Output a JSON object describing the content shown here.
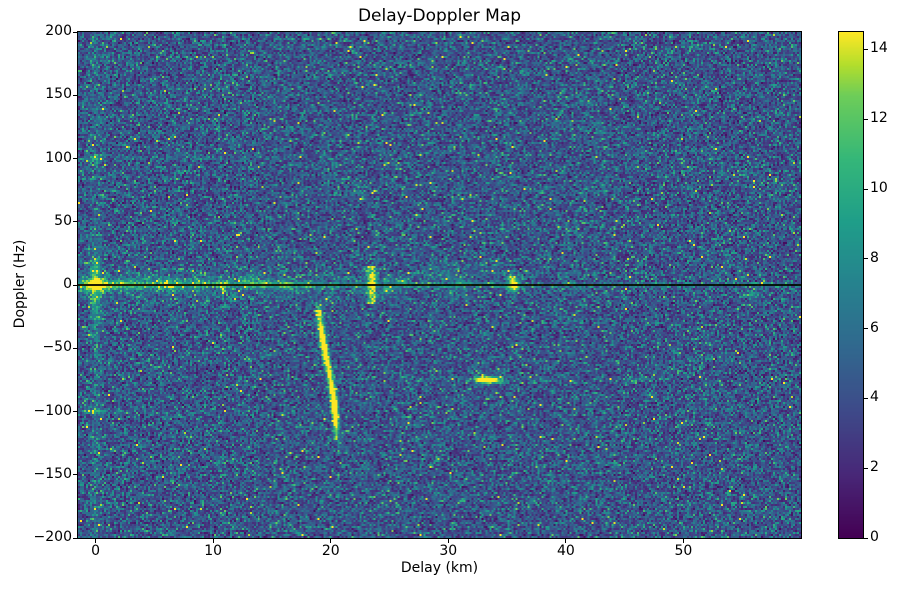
{
  "figure": {
    "title": "Delay-Doppler Map",
    "xlabel": "Delay (km)",
    "ylabel": "Doppler (Hz)"
  },
  "chart_data": {
    "type": "heatmap",
    "title": "Delay-Doppler Map",
    "xlabel": "Delay (km)",
    "ylabel": "Doppler (Hz)",
    "xlim": [
      -1.5,
      60
    ],
    "ylim": [
      -200,
      200
    ],
    "xticks": [
      0,
      10,
      20,
      30,
      40,
      50
    ],
    "yticks": [
      -200,
      -150,
      -100,
      -50,
      0,
      50,
      100,
      150,
      200
    ],
    "colormap": "viridis",
    "grid": false,
    "colorbar": {
      "min": 0,
      "max": 14.5,
      "ticks": [
        0,
        2,
        4,
        6,
        8,
        10,
        12,
        14
      ],
      "position": "right"
    },
    "background_noise": {
      "mean": 4.6,
      "shape": 4,
      "seed": 42
    },
    "annotations": [
      {
        "type": "axhline",
        "y": 0,
        "color": "#000000"
      }
    ],
    "features": [
      {
        "type": "hline",
        "name": "zero-doppler-ridge",
        "y": 0,
        "x0": -1.5,
        "x1": 60,
        "amp": 7,
        "amp_end": 6,
        "sigma": 0.9
      },
      {
        "type": "hline",
        "name": "zero-doppler-clutter-band",
        "y": 0,
        "x0": -1.5,
        "x1": 27,
        "amp": 2.8,
        "amp_end": 0.6,
        "sigma": 4.5
      },
      {
        "type": "hline",
        "name": "zero-doppler-wide-fuzz",
        "y": 0,
        "x0": -1.5,
        "x1": 27,
        "amp": 1.1,
        "amp_end": 0.3,
        "sigma": 12
      },
      {
        "type": "vline",
        "name": "zero-delay-column",
        "x": 0,
        "y0": -200,
        "y1": 200,
        "amp": 1.2,
        "sigma": 0.35
      },
      {
        "type": "blob",
        "name": "direct-path",
        "x": 0,
        "y": 0,
        "amp": 12,
        "sx": 0.5,
        "sy": 3
      },
      {
        "type": "blob",
        "x": 0,
        "y": 10,
        "amp": 4,
        "sx": 0.35,
        "sy": 7
      },
      {
        "type": "blob",
        "x": 0,
        "y": -12,
        "amp": 4,
        "sx": 0.35,
        "sy": 8
      },
      {
        "type": "blob",
        "x": 0,
        "y": 28,
        "amp": 1.8,
        "sx": 0.3,
        "sy": 9
      },
      {
        "type": "blob",
        "x": 0,
        "y": -30,
        "amp": 1.8,
        "sx": 0.3,
        "sy": 9
      },
      {
        "type": "blob",
        "name": "spur-plus100",
        "x": 0,
        "y": 100,
        "amp": 4.5,
        "sx": 0.4,
        "sy": 1.8
      },
      {
        "type": "blob",
        "name": "spur-minus100",
        "x": 0,
        "y": -100,
        "amp": 4.5,
        "sx": 0.4,
        "sy": 1.8
      },
      {
        "type": "hline",
        "name": "faint-line-plus100",
        "y": 100,
        "x0": -1,
        "x1": 26,
        "amp": 1.5,
        "amp_end": 0.4,
        "sigma": 1.2
      },
      {
        "type": "hline",
        "name": "faint-line-minus100",
        "y": -100,
        "x0": -1,
        "x1": 13,
        "amp": 1.4,
        "amp_end": 0.4,
        "sigma": 1.2
      },
      {
        "type": "hline",
        "name": "faint-line-minus75",
        "y": -75,
        "x0": 25,
        "x1": 47,
        "amp": 1.3,
        "amp_end": 1.0,
        "sigma": 1.3
      },
      {
        "type": "blob",
        "x": 1.3,
        "y": 0,
        "amp": 6,
        "sx": 0.3,
        "sy": 2.2
      },
      {
        "type": "blob",
        "x": 2.3,
        "y": 1,
        "amp": 4,
        "sx": 0.3,
        "sy": 2
      },
      {
        "type": "blob",
        "x": 3.2,
        "y": 0,
        "amp": 4,
        "sx": 0.35,
        "sy": 2
      },
      {
        "type": "blob",
        "x": 4.5,
        "y": 1,
        "amp": 3,
        "sx": 0.4,
        "sy": 2.5
      },
      {
        "type": "blob",
        "x": 6,
        "y": 1,
        "amp": 6,
        "sx": 0.4,
        "sy": 3
      },
      {
        "type": "blob",
        "x": 7.2,
        "y": 0,
        "amp": 4,
        "sx": 0.3,
        "sy": 2.5
      },
      {
        "type": "blob",
        "x": 8.5,
        "y": 1,
        "amp": 3,
        "sx": 0.4,
        "sy": 2.5
      },
      {
        "type": "blob",
        "x": 11,
        "y": 1,
        "amp": 4,
        "sx": 0.5,
        "sy": 2.5
      },
      {
        "type": "blob",
        "x": 13,
        "y": 2,
        "amp": 5,
        "sx": 0.5,
        "sy": 3
      },
      {
        "type": "blob",
        "x": 14.5,
        "y": 1,
        "amp": 4,
        "sx": 0.4,
        "sy": 2.5
      },
      {
        "type": "blob",
        "x": 16,
        "y": 1,
        "amp": 3.5,
        "sx": 0.4,
        "sy": 3
      },
      {
        "type": "blob",
        "x": 18,
        "y": 0,
        "amp": 3,
        "sx": 0.4,
        "sy": 2
      },
      {
        "type": "vline",
        "name": "target-23p5",
        "x": 23.5,
        "y0": -12,
        "y1": 14,
        "amp": 8,
        "sigma": 0.28
      },
      {
        "type": "blob",
        "x": 23.5,
        "y": 6,
        "amp": 4,
        "sx": 0.3,
        "sy": 3
      },
      {
        "type": "blob",
        "x": 24.8,
        "y": -5,
        "amp": 4,
        "sx": 0.3,
        "sy": 2.5
      },
      {
        "type": "blob",
        "x": 24.8,
        "y": 4,
        "amp": 3,
        "sx": 0.25,
        "sy": 2.5
      },
      {
        "type": "blob",
        "x": 26,
        "y": 2,
        "amp": 3,
        "sx": 0.4,
        "sy": 2.5
      },
      {
        "type": "blob",
        "x": 28,
        "y": 1,
        "amp": 3,
        "sx": 0.4,
        "sy": 2
      },
      {
        "type": "blob",
        "x": 31,
        "y": 2,
        "amp": 2.5,
        "sx": 0.5,
        "sy": 2.5
      },
      {
        "type": "blob",
        "x": 29.5,
        "y": 9,
        "amp": 2.2,
        "sx": 1.2,
        "sy": 5
      },
      {
        "type": "blob",
        "x": 33,
        "y": 12,
        "amp": 1.8,
        "sx": 1,
        "sy": 5
      },
      {
        "type": "blob",
        "x": 30.5,
        "y": -8,
        "amp": 1.5,
        "sx": 0.8,
        "sy": 4
      },
      {
        "type": "blob",
        "name": "target-35p5",
        "x": 35.5,
        "y": 2,
        "amp": 9,
        "sx": 0.35,
        "sy": 4
      },
      {
        "type": "blob",
        "x": 35.5,
        "y": -3,
        "amp": 5,
        "sx": 0.3,
        "sy": 3
      },
      {
        "type": "blob",
        "name": "target-minus75-a",
        "x": 33.6,
        "y": -75,
        "amp": 12,
        "sx": 0.7,
        "sy": 2
      },
      {
        "type": "blob",
        "name": "target-minus75-b",
        "x": 32.9,
        "y": -75,
        "amp": 8,
        "sx": 0.5,
        "sy": 1.8
      },
      {
        "type": "blob",
        "x": 45.8,
        "y": -75,
        "amp": 2.5,
        "sx": 0.5,
        "sy": 1.5
      },
      {
        "type": "blob",
        "name": "target-55p7",
        "x": 55.7,
        "y": -8,
        "amp": 6,
        "sx": 0.5,
        "sy": 1.3
      },
      {
        "type": "track",
        "name": "accelerating-target-track",
        "sx": 0.18,
        "sy": 2.2,
        "points": [
          [
            19.0,
            -17,
            3
          ],
          [
            19.02,
            -20,
            6
          ],
          [
            19.05,
            -23,
            8
          ],
          [
            19.08,
            -26,
            5
          ],
          [
            19.12,
            -29,
            7
          ],
          [
            19.16,
            -32,
            9
          ],
          [
            19.2,
            -35,
            6
          ],
          [
            19.25,
            -38,
            10
          ],
          [
            19.3,
            -41,
            11
          ],
          [
            19.35,
            -44,
            8
          ],
          [
            19.41,
            -47,
            11
          ],
          [
            19.47,
            -50,
            12
          ],
          [
            19.53,
            -53,
            9
          ],
          [
            19.6,
            -56,
            10
          ],
          [
            19.66,
            -59,
            7
          ],
          [
            19.73,
            -62,
            9
          ],
          [
            19.8,
            -65,
            8
          ],
          [
            19.86,
            -68,
            10
          ],
          [
            19.92,
            -71,
            7
          ],
          [
            19.98,
            -74,
            9
          ],
          [
            20.04,
            -77,
            8
          ],
          [
            20.09,
            -80,
            10
          ],
          [
            20.14,
            -83,
            9
          ],
          [
            20.19,
            -86,
            10
          ],
          [
            20.24,
            -89,
            11
          ],
          [
            20.28,
            -92,
            12
          ],
          [
            20.32,
            -95,
            13
          ],
          [
            20.35,
            -98,
            13
          ],
          [
            20.38,
            -101,
            12
          ],
          [
            20.41,
            -104,
            10
          ],
          [
            20.43,
            -107,
            8
          ],
          [
            20.45,
            -110,
            7
          ],
          [
            20.47,
            -113,
            6
          ],
          [
            20.48,
            -116,
            5
          ],
          [
            20.49,
            -119,
            4
          ],
          [
            20.5,
            -123,
            3
          ]
        ]
      }
    ]
  }
}
